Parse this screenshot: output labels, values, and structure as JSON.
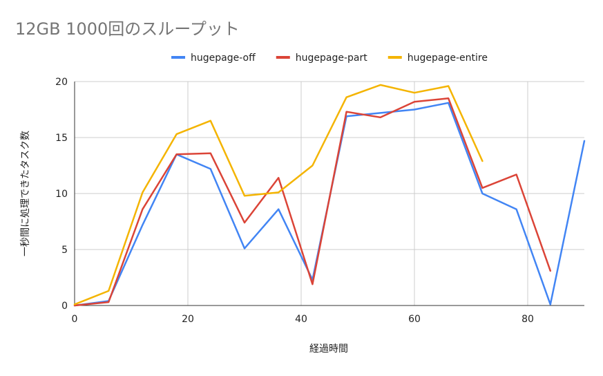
{
  "chart_data": {
    "type": "line",
    "title": "12GB 1000回のスループット",
    "xlabel": "経過時間",
    "ylabel": "一秒間に処理できたタスク数",
    "xlim": [
      0,
      90
    ],
    "ylim": [
      0,
      20
    ],
    "xticks": [
      0,
      20,
      40,
      60,
      80
    ],
    "yticks": [
      0,
      5,
      10,
      15,
      20
    ],
    "grid": true,
    "legend_position": "top",
    "series": [
      {
        "name": "hugepage-off",
        "color": "#4285F4",
        "points": [
          [
            0,
            0
          ],
          [
            6,
            0.4
          ],
          [
            12,
            7.2
          ],
          [
            18,
            13.5
          ],
          [
            24,
            12.2
          ],
          [
            30,
            5.1
          ],
          [
            36,
            8.6
          ],
          [
            42,
            2.3
          ],
          [
            48,
            16.9
          ],
          [
            54,
            17.2
          ],
          [
            60,
            17.5
          ],
          [
            66,
            18.1
          ],
          [
            72,
            10.0
          ],
          [
            78,
            8.6
          ],
          [
            84,
            0.1
          ],
          [
            90,
            14.7
          ]
        ]
      },
      {
        "name": "hugepage-part",
        "color": "#DB4437",
        "points": [
          [
            0,
            0
          ],
          [
            6,
            0.3
          ],
          [
            12,
            8.6
          ],
          [
            18,
            13.5
          ],
          [
            24,
            13.6
          ],
          [
            30,
            7.4
          ],
          [
            36,
            11.4
          ],
          [
            42,
            1.9
          ],
          [
            48,
            17.3
          ],
          [
            54,
            16.8
          ],
          [
            60,
            18.2
          ],
          [
            66,
            18.5
          ],
          [
            72,
            10.5
          ],
          [
            78,
            11.7
          ],
          [
            84,
            3.1
          ]
        ]
      },
      {
        "name": "hugepage-entire",
        "color": "#F4B400",
        "points": [
          [
            0,
            0.1
          ],
          [
            6,
            1.3
          ],
          [
            12,
            10.1
          ],
          [
            18,
            15.3
          ],
          [
            24,
            16.5
          ],
          [
            30,
            9.8
          ],
          [
            36,
            10.1
          ],
          [
            42,
            12.5
          ],
          [
            48,
            18.6
          ],
          [
            54,
            19.7
          ],
          [
            60,
            19.0
          ],
          [
            66,
            19.6
          ],
          [
            72,
            12.9
          ]
        ]
      }
    ]
  }
}
